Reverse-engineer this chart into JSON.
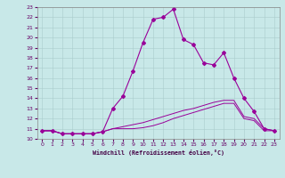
{
  "xlabel": "Windchill (Refroidissement éolien,°C)",
  "xlim": [
    -0.5,
    23.5
  ],
  "ylim": [
    10,
    23
  ],
  "xticks": [
    0,
    1,
    2,
    3,
    4,
    5,
    6,
    7,
    8,
    9,
    10,
    11,
    12,
    13,
    14,
    15,
    16,
    17,
    18,
    19,
    20,
    21,
    22,
    23
  ],
  "yticks": [
    10,
    11,
    12,
    13,
    14,
    15,
    16,
    17,
    18,
    19,
    20,
    21,
    22,
    23
  ],
  "grid_color": "#aacccc",
  "bg_color": "#c8e8e8",
  "line_color": "#990099",
  "line1_x": [
    0,
    1,
    2,
    3,
    4,
    5,
    6,
    7,
    8,
    9,
    10,
    11,
    12,
    13,
    14,
    15,
    16,
    17,
    18,
    19,
    20,
    21,
    22,
    23
  ],
  "line1_y": [
    10.8,
    10.8,
    10.5,
    10.5,
    10.5,
    10.5,
    10.7,
    11.0,
    11.0,
    11.0,
    11.1,
    11.3,
    11.6,
    12.0,
    12.3,
    12.6,
    12.9,
    13.2,
    13.5,
    13.5,
    12.0,
    11.8,
    10.8,
    10.8
  ],
  "line2_x": [
    0,
    1,
    2,
    3,
    4,
    5,
    6,
    7,
    8,
    9,
    10,
    11,
    12,
    13,
    14,
    15,
    16,
    17,
    18,
    19,
    20,
    21,
    22,
    23
  ],
  "line2_y": [
    10.8,
    10.8,
    10.5,
    10.5,
    10.5,
    10.5,
    10.7,
    13.0,
    14.2,
    16.7,
    19.5,
    21.8,
    22.0,
    22.8,
    19.8,
    19.3,
    17.5,
    17.3,
    18.5,
    16.0,
    14.0,
    12.7,
    11.0,
    10.8
  ],
  "line3_x": [
    0,
    1,
    2,
    3,
    4,
    5,
    6,
    7,
    8,
    9,
    10,
    11,
    12,
    13,
    14,
    15,
    16,
    17,
    18,
    19,
    20,
    21,
    22,
    23
  ],
  "line3_y": [
    10.8,
    10.8,
    10.5,
    10.5,
    10.5,
    10.5,
    10.7,
    11.0,
    11.2,
    11.4,
    11.6,
    11.9,
    12.2,
    12.5,
    12.8,
    13.0,
    13.3,
    13.6,
    13.8,
    13.8,
    12.2,
    12.0,
    11.0,
    10.8
  ]
}
